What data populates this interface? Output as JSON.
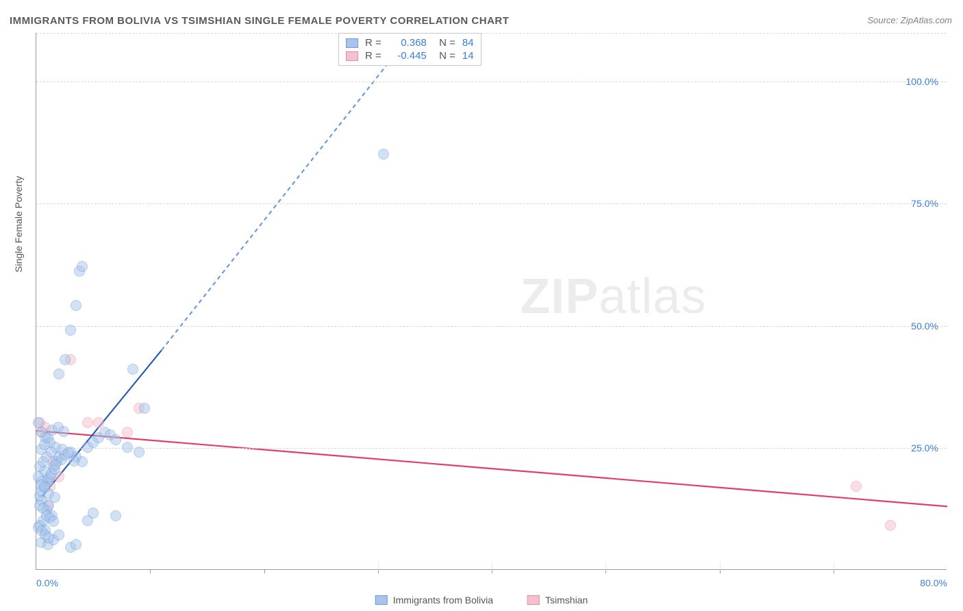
{
  "title": "IMMIGRANTS FROM BOLIVIA VS TSIMSHIAN SINGLE FEMALE POVERTY CORRELATION CHART",
  "source": "Source: ZipAtlas.com",
  "y_axis_label": "Single Female Poverty",
  "watermark": {
    "bold": "ZIP",
    "light": "atlas"
  },
  "chart": {
    "type": "scatter",
    "xlim": [
      0,
      80
    ],
    "ylim": [
      0,
      110
    ],
    "x_ticks": [
      0,
      10,
      20,
      30,
      40,
      50,
      60,
      70,
      80
    ],
    "x_tick_labels": {
      "0": "0.0%",
      "80": "80.0%"
    },
    "y_gridlines": [
      25,
      50,
      75,
      100,
      110
    ],
    "y_tick_labels": {
      "25": "25.0%",
      "50": "50.0%",
      "75": "75.0%",
      "100": "100.0%"
    },
    "background_color": "#ffffff",
    "grid_color": "#d8d8d8",
    "axis_color": "#9a9a9a",
    "tick_label_color": "#3b7dd8",
    "point_radius": 8,
    "point_opacity": 0.5
  },
  "series": {
    "bolivia": {
      "label": "Immigrants from Bolivia",
      "fill_color": "#a7c4ea",
      "stroke_color": "#6e9bd8",
      "line_color": "#2a5db0",
      "R": "0.368",
      "N": "84",
      "trend_solid": {
        "x1": 0.5,
        "y1": 15,
        "x2": 11,
        "y2": 45
      },
      "trend_dash": {
        "x1": 11,
        "y1": 45,
        "x2": 33,
        "y2": 110
      },
      "points": [
        [
          0.3,
          15
        ],
        [
          0.4,
          16
        ],
        [
          0.8,
          17
        ],
        [
          1.0,
          18
        ],
        [
          1.2,
          19
        ],
        [
          0.5,
          14
        ],
        [
          0.7,
          20
        ],
        [
          1.5,
          21
        ],
        [
          1.8,
          22
        ],
        [
          2.0,
          23
        ],
        [
          0.9,
          12
        ],
        [
          1.1,
          13
        ],
        [
          1.4,
          11
        ],
        [
          0.6,
          10
        ],
        [
          0.3,
          9
        ],
        [
          0.8,
          8
        ],
        [
          1.0,
          18.5
        ],
        [
          1.3,
          19.5
        ],
        [
          1.6,
          20.5
        ],
        [
          2.2,
          22.5
        ],
        [
          2.5,
          23.5
        ],
        [
          3.0,
          24
        ],
        [
          3.5,
          23
        ],
        [
          4.0,
          22
        ],
        [
          4.5,
          25
        ],
        [
          5.0,
          26
        ],
        [
          5.5,
          27
        ],
        [
          6.0,
          28
        ],
        [
          6.5,
          27.5
        ],
        [
          7.0,
          26.5
        ],
        [
          0.4,
          5.5
        ],
        [
          1.0,
          5
        ],
        [
          1.5,
          6
        ],
        [
          2.0,
          7
        ],
        [
          3.0,
          4.5
        ],
        [
          3.5,
          5
        ],
        [
          4.5,
          10
        ],
        [
          5.0,
          11.5
        ],
        [
          7.0,
          11
        ],
        [
          8.0,
          25
        ],
        [
          9.0,
          24
        ],
        [
          2.0,
          40
        ],
        [
          2.5,
          43
        ],
        [
          3.0,
          49
        ],
        [
          3.5,
          54
        ],
        [
          3.8,
          61
        ],
        [
          4.0,
          62
        ],
        [
          8.5,
          41
        ],
        [
          9.5,
          33
        ],
        [
          30.5,
          85
        ],
        [
          0.2,
          30
        ],
        [
          0.5,
          28
        ],
        [
          0.8,
          27
        ],
        [
          1.2,
          26
        ],
        [
          1.7,
          25
        ],
        [
          2.3,
          24.5
        ],
        [
          2.8,
          23.8
        ],
        [
          3.3,
          22.2
        ],
        [
          0.3,
          21
        ],
        [
          0.6,
          22
        ],
        [
          0.9,
          23
        ],
        [
          1.3,
          24
        ],
        [
          1.7,
          21.5
        ],
        [
          0.2,
          19
        ],
        [
          0.5,
          18
        ],
        [
          0.4,
          17.2
        ],
        [
          0.7,
          16.8
        ],
        [
          1.1,
          15.5
        ],
        [
          1.6,
          14.8
        ],
        [
          0.3,
          13
        ],
        [
          0.6,
          12.5
        ],
        [
          0.9,
          11
        ],
        [
          1.2,
          10.5
        ],
        [
          1.5,
          9.8
        ],
        [
          0.2,
          8.5
        ],
        [
          0.5,
          7.8
        ],
        [
          0.8,
          7
        ],
        [
          1.1,
          6.5
        ],
        [
          0.4,
          24.5
        ],
        [
          0.7,
          25.5
        ],
        [
          1.0,
          27
        ],
        [
          1.4,
          28.5
        ],
        [
          1.9,
          29
        ],
        [
          2.4,
          28.2
        ]
      ]
    },
    "tsimshian": {
      "label": "Tsimshian",
      "fill_color": "#f4c1cd",
      "stroke_color": "#e88da3",
      "line_color": "#e23d6b",
      "R": "-0.445",
      "N": "14",
      "trend_solid": {
        "x1": 0,
        "y1": 28.5,
        "x2": 80,
        "y2": 13
      },
      "points": [
        [
          0.3,
          30
        ],
        [
          0.5,
          28
        ],
        [
          0.8,
          29
        ],
        [
          1.0,
          13
        ],
        [
          1.2,
          17
        ],
        [
          1.5,
          22
        ],
        [
          2.0,
          19
        ],
        [
          3.0,
          43
        ],
        [
          4.5,
          30
        ],
        [
          5.5,
          30
        ],
        [
          8.0,
          28
        ],
        [
          9.0,
          33
        ],
        [
          72,
          17
        ],
        [
          75,
          9
        ]
      ]
    }
  },
  "bottom_legend": [
    {
      "key": "bolivia"
    },
    {
      "key": "tsimshian"
    }
  ]
}
